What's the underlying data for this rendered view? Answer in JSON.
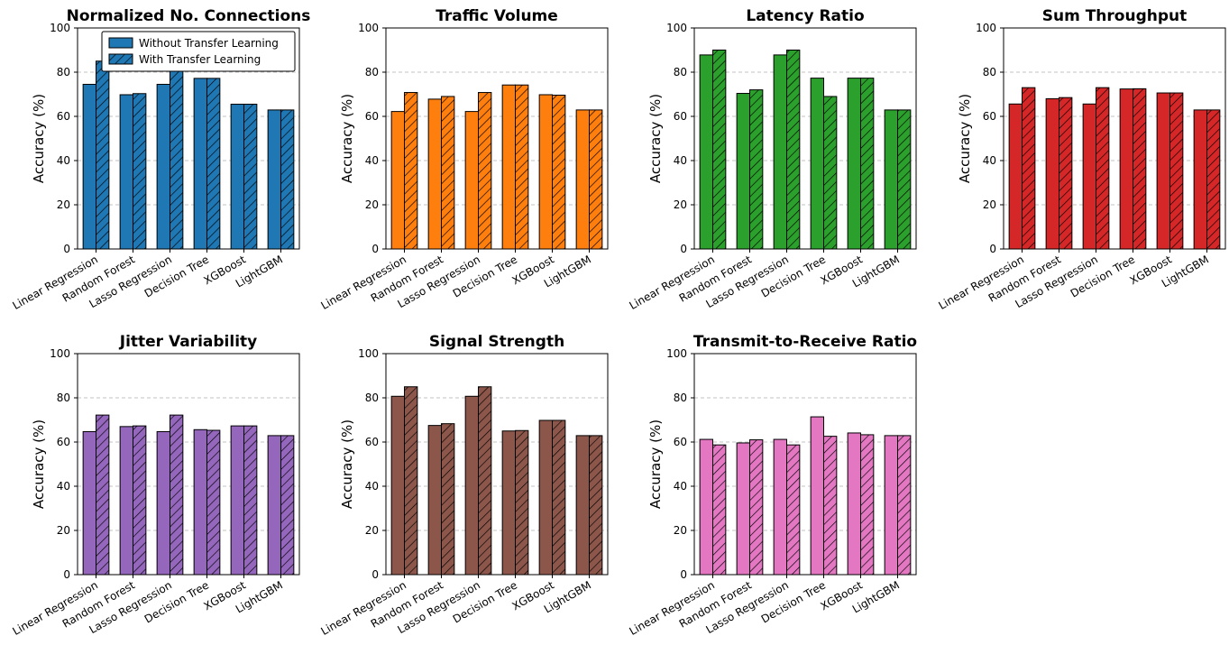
{
  "chart_data": [
    {
      "type": "bar",
      "title": "Normalized No. Connections",
      "ylabel": "Accuracy (%)",
      "ylim": [
        0,
        100
      ],
      "yticks": [
        "0",
        "20",
        "40",
        "60",
        "80",
        "100"
      ],
      "grid": "y-dashed",
      "color": "#1f77b4",
      "categories": [
        "Linear Regression",
        "Random Forest",
        "Lasso Regression",
        "Decision Tree",
        "XGBoost",
        "LightGBM"
      ],
      "series": [
        {
          "name": "Without Transfer Learning",
          "hatch": "none",
          "values": [
            74.5,
            69.8,
            74.5,
            77.2,
            65.5,
            62.9
          ]
        },
        {
          "name": "With Transfer Learning",
          "hatch": "diagonal",
          "values": [
            85.0,
            70.3,
            81.0,
            77.2,
            65.5,
            62.9
          ]
        }
      ],
      "legend": "top-right"
    },
    {
      "type": "bar",
      "title": "Traffic Volume",
      "ylabel": "Accuracy (%)",
      "ylim": [
        0,
        100
      ],
      "yticks": [
        "0",
        "20",
        "40",
        "60",
        "80",
        "100"
      ],
      "grid": "y-dashed",
      "color": "#ff7f0e",
      "categories": [
        "Linear Regression",
        "Random Forest",
        "Lasso Regression",
        "Decision Tree",
        "XGBoost",
        "LightGBM"
      ],
      "series": [
        {
          "hatch": "none",
          "values": [
            62.2,
            67.8,
            62.2,
            74.2,
            69.8,
            62.9
          ]
        },
        {
          "hatch": "diagonal",
          "values": [
            70.8,
            69.0,
            70.8,
            74.2,
            69.6,
            62.9
          ]
        }
      ]
    },
    {
      "type": "bar",
      "title": "Latency Ratio",
      "ylabel": "Accuracy (%)",
      "ylim": [
        0,
        100
      ],
      "yticks": [
        "0",
        "20",
        "40",
        "60",
        "80",
        "100"
      ],
      "grid": "y-dashed",
      "color": "#2ca02c",
      "categories": [
        "Linear Regression",
        "Random Forest",
        "Lasso Regression",
        "Decision Tree",
        "XGBoost",
        "LightGBM"
      ],
      "series": [
        {
          "hatch": "none",
          "values": [
            87.8,
            70.4,
            87.8,
            77.3,
            77.3,
            62.9
          ]
        },
        {
          "hatch": "diagonal",
          "values": [
            90.0,
            72.0,
            90.0,
            69.0,
            77.3,
            62.9
          ]
        }
      ]
    },
    {
      "type": "bar",
      "title": "Sum Throughput",
      "ylabel": "Accuracy (%)",
      "ylim": [
        0,
        100
      ],
      "yticks": [
        "0",
        "20",
        "40",
        "60",
        "80",
        "100"
      ],
      "grid": "y-dashed",
      "color": "#d62728",
      "categories": [
        "Linear Regression",
        "Random Forest",
        "Lasso Regression",
        "Decision Tree",
        "XGBoost",
        "LightGBM"
      ],
      "series": [
        {
          "hatch": "none",
          "values": [
            65.6,
            68.0,
            65.6,
            72.4,
            70.6,
            62.9
          ]
        },
        {
          "hatch": "diagonal",
          "values": [
            73.0,
            68.5,
            73.0,
            72.5,
            70.6,
            62.9
          ]
        }
      ]
    },
    {
      "type": "bar",
      "title": "Jitter Variability",
      "ylabel": "Accuracy (%)",
      "ylim": [
        0,
        100
      ],
      "yticks": [
        "0",
        "20",
        "40",
        "60",
        "80",
        "100"
      ],
      "grid": "y-dashed",
      "color": "#9467bd",
      "categories": [
        "Linear Regression",
        "Random Forest",
        "Lasso Regression",
        "Decision Tree",
        "XGBoost",
        "LightGBM"
      ],
      "series": [
        {
          "hatch": "none",
          "values": [
            64.7,
            67.0,
            64.7,
            65.6,
            67.3,
            62.9
          ]
        },
        {
          "hatch": "diagonal",
          "values": [
            72.2,
            67.3,
            72.2,
            65.3,
            67.3,
            62.9
          ]
        }
      ]
    },
    {
      "type": "bar",
      "title": "Signal Strength",
      "ylabel": "Accuracy (%)",
      "ylim": [
        0,
        100
      ],
      "yticks": [
        "0",
        "20",
        "40",
        "60",
        "80",
        "100"
      ],
      "grid": "y-dashed",
      "color": "#8c564b",
      "categories": [
        "Linear Regression",
        "Random Forest",
        "Lasso Regression",
        "Decision Tree",
        "XGBoost",
        "LightGBM"
      ],
      "series": [
        {
          "hatch": "none",
          "values": [
            80.7,
            67.5,
            80.7,
            65.0,
            69.8,
            62.9
          ]
        },
        {
          "hatch": "diagonal",
          "values": [
            85.0,
            68.3,
            85.0,
            65.2,
            69.8,
            62.9
          ]
        }
      ]
    },
    {
      "type": "bar",
      "title": "Transmit-to-Receive Ratio",
      "ylabel": "Accuracy (%)",
      "ylim": [
        0,
        100
      ],
      "yticks": [
        "0",
        "20",
        "40",
        "60",
        "80",
        "100"
      ],
      "grid": "y-dashed",
      "color": "#e377c2",
      "categories": [
        "Linear Regression",
        "Random Forest",
        "Lasso Regression",
        "Decision Tree",
        "XGBoost",
        "LightGBM"
      ],
      "series": [
        {
          "hatch": "none",
          "values": [
            61.2,
            59.6,
            61.2,
            71.4,
            64.1,
            62.9
          ]
        },
        {
          "hatch": "diagonal",
          "values": [
            58.7,
            61.0,
            58.7,
            62.6,
            63.3,
            62.9
          ]
        }
      ]
    }
  ]
}
